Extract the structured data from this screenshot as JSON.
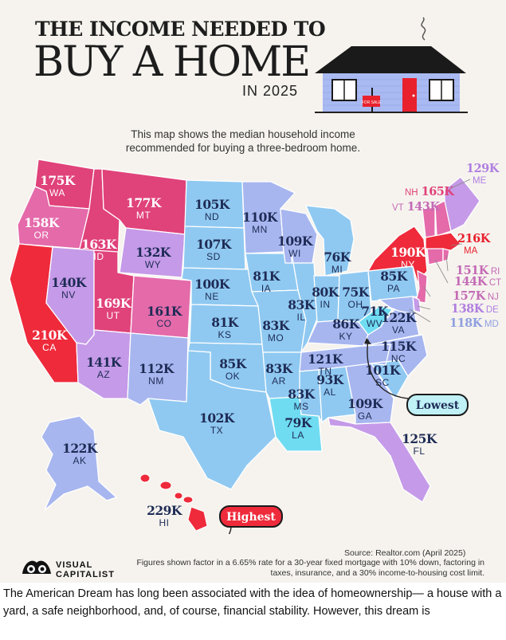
{
  "header": {
    "title_line1": "THE INCOME NEEDED TO",
    "title_line2": "BUY A HOME",
    "year": "IN 2025",
    "sale_sign": "FOR SALE"
  },
  "subtitle": "This map shows the median household income recommended for buying a three-bedroom home.",
  "callouts": {
    "lowest": "Lowest",
    "highest": "Highest"
  },
  "source": "Source: Realtor.com (April 2025)",
  "footnote": "Figures shown factor in a 6.65% rate for a 30-year fixed mortgage with 10% down, factoring in taxes, insurance, and a 30% income-to-housing cost limit.",
  "logo": {
    "line1": "VISUAL",
    "line2": "CAPITALIST"
  },
  "caption": "The American Dream has long been associated with the idea of homeownership— a house with a yard, a safe neighborhood, and, of course, financial stability. However, this dream is",
  "colors": {
    "tier_highest": "#ee2a3b",
    "tier_high": "#e0427a",
    "tier_upper": "#e46aaa",
    "tier_mid": "#c59ae8",
    "tier_lowmid": "#a7b6ef",
    "tier_low": "#8fc9f1",
    "tier_lowest": "#6fdcf2",
    "background": "#f6f3ee",
    "house_roof": "#1a1a1a",
    "house_wall": "#a9b9f2",
    "house_door": "#e8212d"
  },
  "states": [
    {
      "abbr": "WA",
      "value": "175K"
    },
    {
      "abbr": "OR",
      "value": "158K"
    },
    {
      "abbr": "CA",
      "value": "210K"
    },
    {
      "abbr": "ID",
      "value": "163K"
    },
    {
      "abbr": "NV",
      "value": "140K"
    },
    {
      "abbr": "MT",
      "value": "177K"
    },
    {
      "abbr": "WY",
      "value": "132K"
    },
    {
      "abbr": "UT",
      "value": "169K"
    },
    {
      "abbr": "AZ",
      "value": "141K"
    },
    {
      "abbr": "CO",
      "value": "161K"
    },
    {
      "abbr": "NM",
      "value": "112K"
    },
    {
      "abbr": "ND",
      "value": "105K"
    },
    {
      "abbr": "SD",
      "value": "107K"
    },
    {
      "abbr": "NE",
      "value": "100K"
    },
    {
      "abbr": "KS",
      "value": "81K"
    },
    {
      "abbr": "OK",
      "value": "85K"
    },
    {
      "abbr": "TX",
      "value": "102K"
    },
    {
      "abbr": "MN",
      "value": "110K"
    },
    {
      "abbr": "IA",
      "value": "81K"
    },
    {
      "abbr": "MO",
      "value": "83K"
    },
    {
      "abbr": "AR",
      "value": "83K"
    },
    {
      "abbr": "LA",
      "value": "79K"
    },
    {
      "abbr": "WI",
      "value": "109K"
    },
    {
      "abbr": "IL",
      "value": "83K"
    },
    {
      "abbr": "MI",
      "value": "76K"
    },
    {
      "abbr": "IN",
      "value": "80K"
    },
    {
      "abbr": "OH",
      "value": "75K"
    },
    {
      "abbr": "KY",
      "value": "86K"
    },
    {
      "abbr": "TN",
      "value": "121K"
    },
    {
      "abbr": "MS",
      "value": "83K"
    },
    {
      "abbr": "AL",
      "value": "93K"
    },
    {
      "abbr": "GA",
      "value": "109K"
    },
    {
      "abbr": "FL",
      "value": "125K"
    },
    {
      "abbr": "SC",
      "value": "101K"
    },
    {
      "abbr": "NC",
      "value": "115K"
    },
    {
      "abbr": "VA",
      "value": "122K"
    },
    {
      "abbr": "WV",
      "value": "71K"
    },
    {
      "abbr": "PA",
      "value": "85K"
    },
    {
      "abbr": "NY",
      "value": "190K"
    },
    {
      "abbr": "ME",
      "value": "129K"
    },
    {
      "abbr": "AK",
      "value": "122K"
    },
    {
      "abbr": "HI",
      "value": "229K"
    },
    {
      "abbr": "NH",
      "value": "165K"
    },
    {
      "abbr": "VT",
      "value": "143K"
    },
    {
      "abbr": "MA",
      "value": "216K"
    },
    {
      "abbr": "RI",
      "value": "151K"
    },
    {
      "abbr": "CT",
      "value": "144K"
    },
    {
      "abbr": "NJ",
      "value": "157K"
    },
    {
      "abbr": "DE",
      "value": "138K"
    },
    {
      "abbr": "MD",
      "value": "118K"
    }
  ]
}
